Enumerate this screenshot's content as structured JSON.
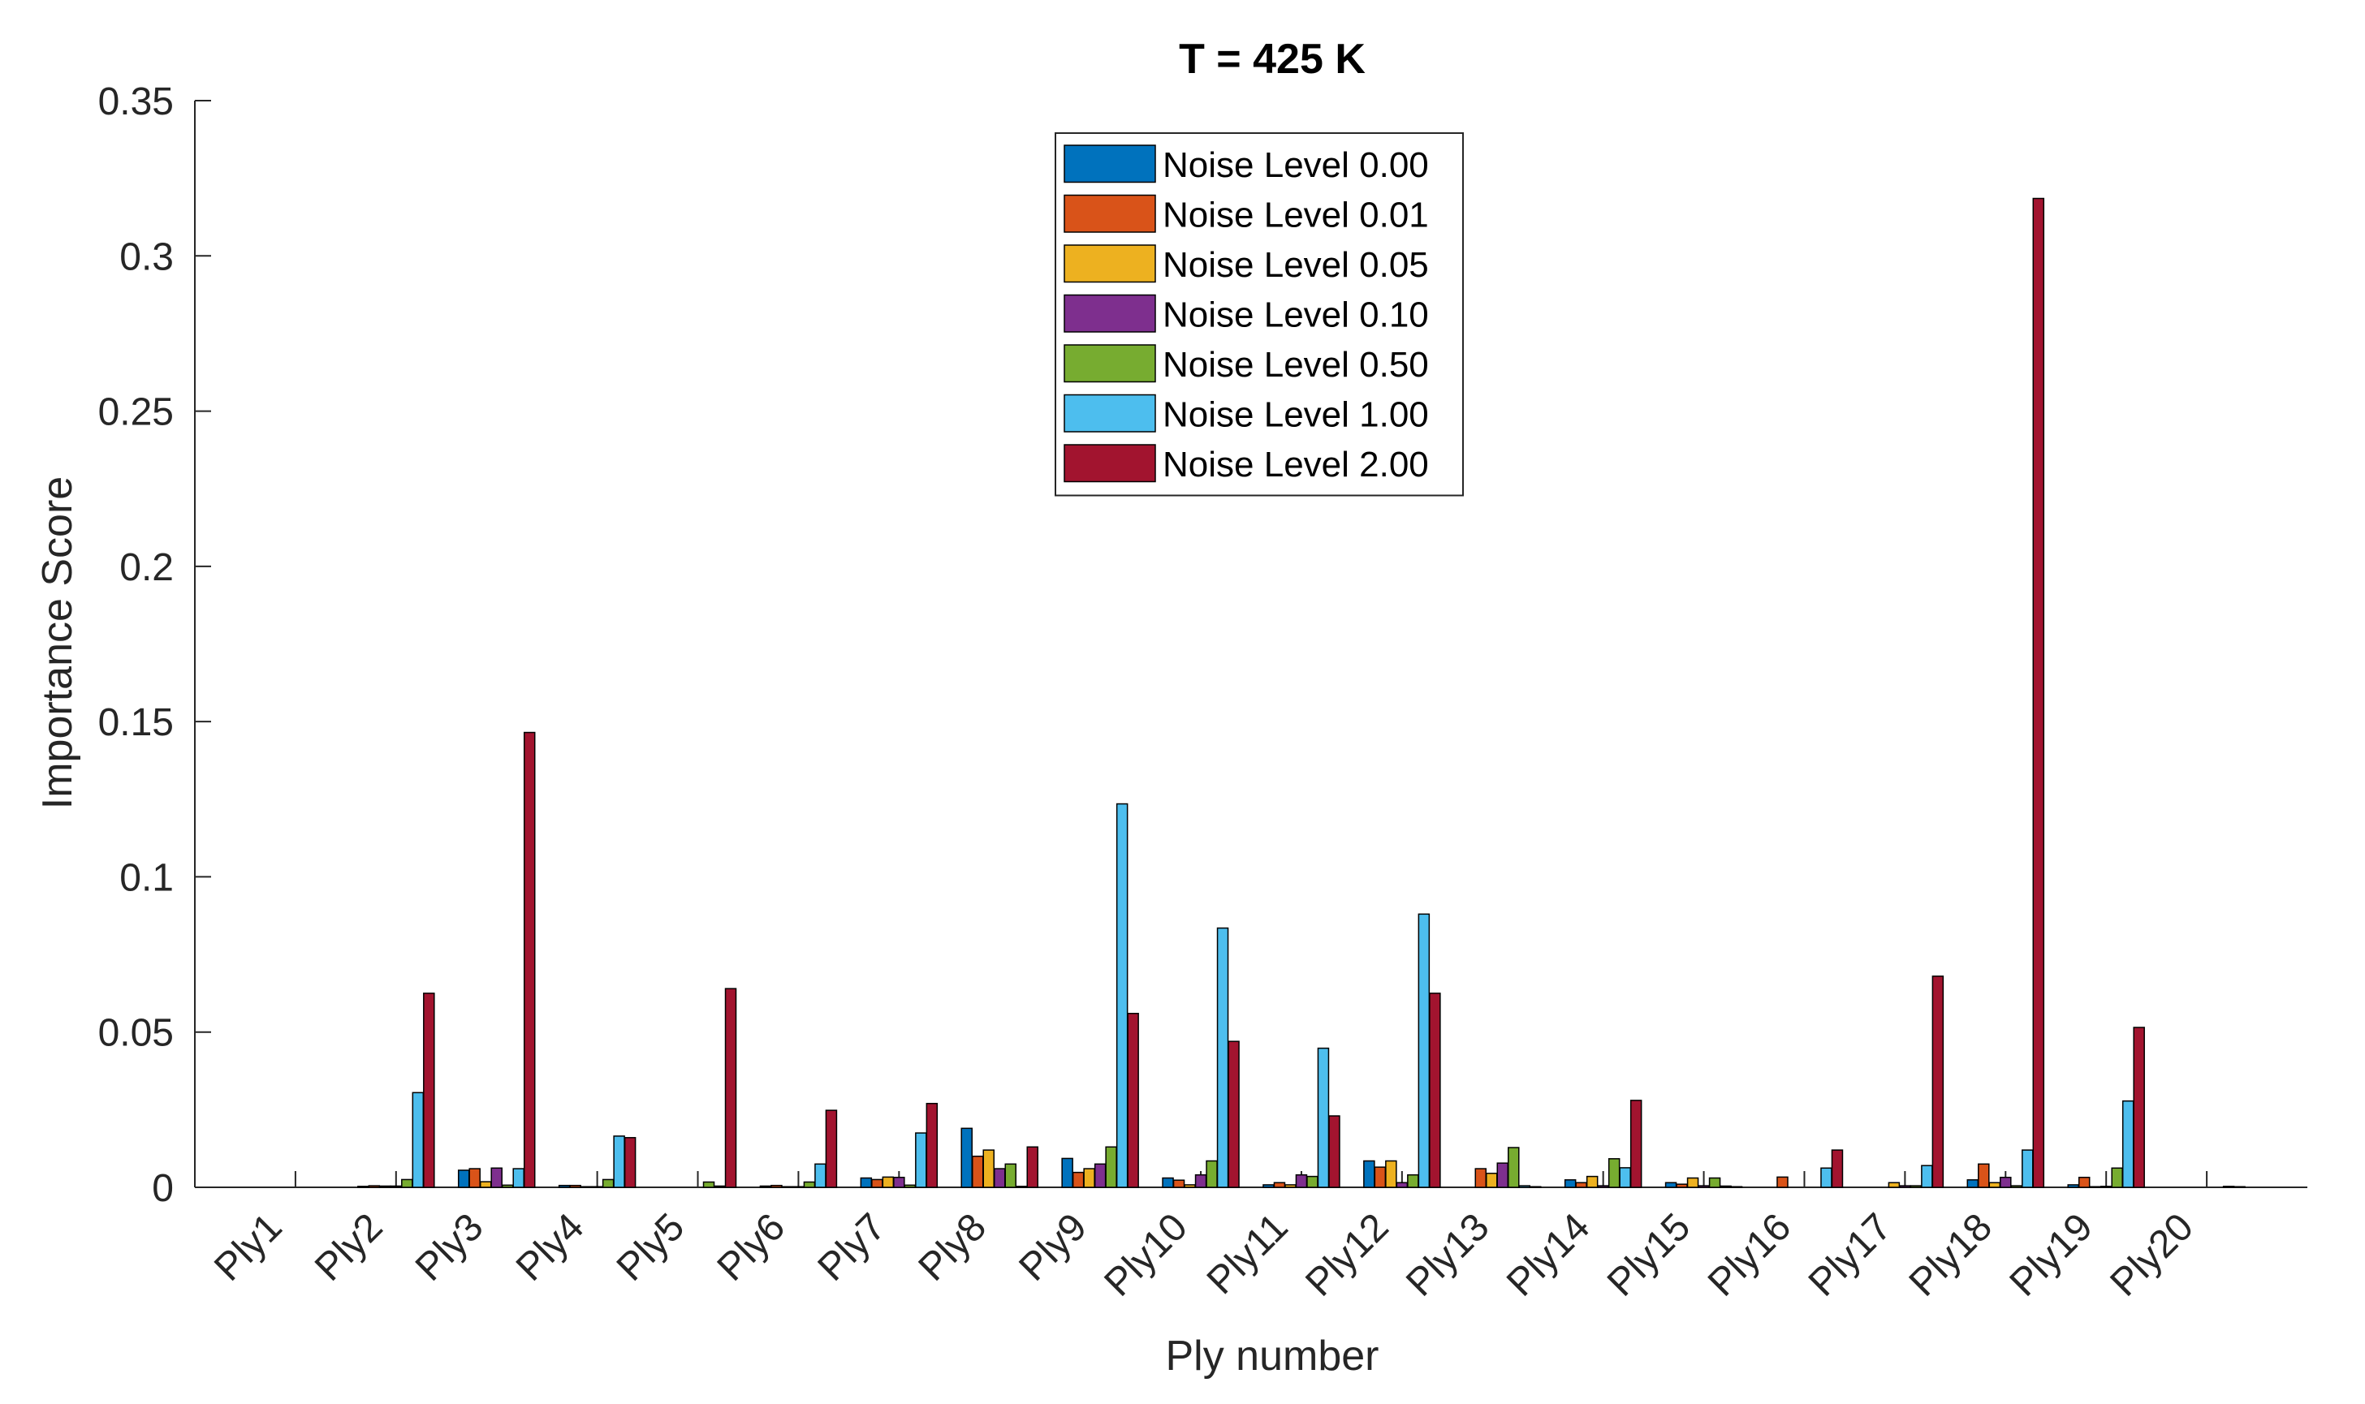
{
  "chart_data": {
    "type": "bar",
    "title": "T = 425 K",
    "xlabel": "Ply number",
    "ylabel": "Importance Score",
    "ylim": [
      0,
      0.35
    ],
    "yticks": [
      0,
      0.05,
      0.1,
      0.15,
      0.2,
      0.25,
      0.3,
      0.35
    ],
    "ytick_labels": [
      "0",
      "0.05",
      "0.1",
      "0.15",
      "0.2",
      "0.25",
      "0.3",
      "0.35"
    ],
    "grid": false,
    "legend_position": "top-center",
    "categories": [
      "Ply1",
      "Ply2",
      "Ply3",
      "Ply4",
      "Ply5",
      "Ply6",
      "Ply7",
      "Ply8",
      "Ply9",
      "Ply10",
      "Ply11",
      "Ply12",
      "Ply13",
      "Ply14",
      "Ply15",
      "Ply16",
      "Ply17",
      "Ply18",
      "Ply19",
      "Ply20"
    ],
    "series": [
      {
        "name": "Noise Level 0.00",
        "color": "#0072BD",
        "values": [
          0,
          0.0003,
          0.0055,
          0.0006,
          0,
          0.0004,
          0.003,
          0.019,
          0.0093,
          0.003,
          0.0008,
          0.0085,
          0,
          0.0024,
          0.0015,
          0,
          0,
          0.0024,
          0.0008,
          0
        ]
      },
      {
        "name": "Noise Level 0.01",
        "color": "#D95319",
        "values": [
          0,
          0.0005,
          0.006,
          0.0006,
          0,
          0.0006,
          0.0025,
          0.01,
          0.0048,
          0.0023,
          0.0015,
          0.0065,
          0.006,
          0.0015,
          0.001,
          0.0033,
          0,
          0.0075,
          0.0032,
          0
        ]
      },
      {
        "name": "Noise Level 0.05",
        "color": "#EDB120",
        "values": [
          0,
          0.0004,
          0.0018,
          0.0002,
          0,
          0.0002,
          0.0033,
          0.012,
          0.006,
          0.0008,
          0.0008,
          0.0085,
          0.0045,
          0.0035,
          0.003,
          0,
          0.0015,
          0.0015,
          0.0002,
          0
        ]
      },
      {
        "name": "Noise Level 0.10",
        "color": "#7E2F8E",
        "values": [
          0,
          0.0004,
          0.0062,
          0.0002,
          0,
          0.0002,
          0.0032,
          0.006,
          0.0075,
          0.004,
          0.004,
          0.0015,
          0.0078,
          0.0005,
          0.0005,
          0,
          0.0005,
          0.0032,
          0.0003,
          0
        ]
      },
      {
        "name": "Noise Level 0.50",
        "color": "#77AC30",
        "values": [
          0,
          0.0025,
          0.0007,
          0.0025,
          0.0017,
          0.0017,
          0.0007,
          0.0075,
          0.013,
          0.0085,
          0.0035,
          0.004,
          0.0128,
          0.0092,
          0.003,
          0,
          0.0005,
          0.0005,
          0.0062,
          0
        ]
      },
      {
        "name": "Noise Level 1.00",
        "color": "#4DBEEE",
        "values": [
          0,
          0.0305,
          0.006,
          0.0165,
          0.0004,
          0.0075,
          0.0175,
          0.0003,
          0.1235,
          0.0835,
          0.0448,
          0.088,
          0.0005,
          0.0063,
          0.0004,
          0.0062,
          0.007,
          0.012,
          0.0278,
          0.0003
        ]
      },
      {
        "name": "Noise Level 2.00",
        "color": "#A2142F",
        "values": [
          0,
          0.0625,
          0.1465,
          0.016,
          0.064,
          0.0248,
          0.027,
          0.013,
          0.056,
          0.047,
          0.023,
          0.0625,
          0.0002,
          0.028,
          0.0002,
          0.012,
          0.068,
          0.3185,
          0.0515,
          0.0002
        ]
      }
    ]
  }
}
